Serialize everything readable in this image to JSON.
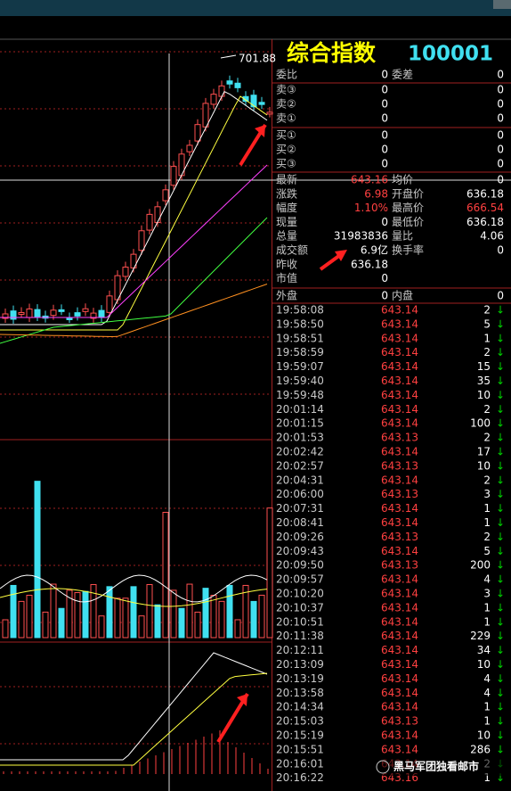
{
  "header": {
    "marker": "701.88",
    "title": "综合指数",
    "code": "100001"
  },
  "order_book": {
    "ratio": {
      "label": "委比",
      "value": "0",
      "label2": "委差",
      "value2": "0"
    },
    "sell": [
      {
        "label": "卖③",
        "price": "0",
        "volume": "0"
      },
      {
        "label": "卖②",
        "price": "0",
        "volume": "0"
      },
      {
        "label": "卖①",
        "price": "0",
        "volume": "0"
      }
    ],
    "buy": [
      {
        "label": "买①",
        "price": "0",
        "volume": "0"
      },
      {
        "label": "买②",
        "price": "0",
        "volume": "0"
      },
      {
        "label": "买③",
        "price": "0",
        "volume": "0"
      }
    ]
  },
  "quotes": [
    {
      "label": "最新",
      "value": "643.16",
      "label2": "均价",
      "value2": "0"
    },
    {
      "label": "涨跌",
      "value": "6.98",
      "label2": "开盘价",
      "value2": "636.18"
    },
    {
      "label": "幅度",
      "value": "1.10%",
      "label2": "最高价",
      "value2": "666.54"
    },
    {
      "label": "现量",
      "value": "0",
      "label2": "最低价",
      "value2": "636.18"
    },
    {
      "label": "总量",
      "value": "31983836",
      "label2": "量比",
      "value2": "4.06"
    },
    {
      "label": "成交额",
      "value": "6.9亿",
      "label2": "换手率",
      "value2": "0"
    },
    {
      "label": "昨收",
      "value": "636.18"
    },
    {
      "label": "市值",
      "value": "0"
    }
  ],
  "outer_inner": {
    "label": "外盘",
    "value": "0",
    "label2": "内盘",
    "value2": "0"
  },
  "ticks": [
    [
      "19:58:08",
      "643.14",
      "2",
      "↓"
    ],
    [
      "19:58:50",
      "643.14",
      "5",
      "↓"
    ],
    [
      "19:58:51",
      "643.14",
      "1",
      "↓"
    ],
    [
      "19:58:59",
      "643.14",
      "2",
      "↓"
    ],
    [
      "19:59:07",
      "643.14",
      "15",
      "↓"
    ],
    [
      "19:59:40",
      "643.14",
      "35",
      "↓"
    ],
    [
      "19:59:48",
      "643.14",
      "10",
      "↓"
    ],
    [
      "20:01:14",
      "643.14",
      "2",
      "↓"
    ],
    [
      "20:01:15",
      "643.14",
      "100",
      "↓"
    ],
    [
      "20:01:53",
      "643.13",
      "2",
      "↓"
    ],
    [
      "20:02:42",
      "643.14",
      "17",
      "↓"
    ],
    [
      "20:02:57",
      "643.13",
      "10",
      "↓"
    ],
    [
      "20:04:31",
      "643.14",
      "2",
      "↓"
    ],
    [
      "20:06:00",
      "643.13",
      "3",
      "↓"
    ],
    [
      "20:07:31",
      "643.14",
      "1",
      "↓"
    ],
    [
      "20:08:41",
      "643.14",
      "1",
      "↓"
    ],
    [
      "20:09:26",
      "643.13",
      "2",
      "↓"
    ],
    [
      "20:09:43",
      "643.14",
      "5",
      "↓"
    ],
    [
      "20:09:50",
      "643.13",
      "200",
      "↓"
    ],
    [
      "20:09:57",
      "643.14",
      "4",
      "↓"
    ],
    [
      "20:10:20",
      "643.14",
      "3",
      "↓"
    ],
    [
      "20:10:37",
      "643.14",
      "1",
      "↓"
    ],
    [
      "20:10:51",
      "643.14",
      "1",
      "↓"
    ],
    [
      "20:11:38",
      "643.14",
      "229",
      "↓"
    ],
    [
      "20:12:11",
      "643.14",
      "34",
      "↓"
    ],
    [
      "20:13:09",
      "643.14",
      "10",
      "↓"
    ],
    [
      "20:13:19",
      "643.14",
      "4",
      "↓"
    ],
    [
      "20:13:58",
      "643.14",
      "4",
      "↓"
    ],
    [
      "20:14:34",
      "643.14",
      "1",
      "↓"
    ],
    [
      "20:15:03",
      "643.13",
      "1",
      "↓"
    ],
    [
      "20:15:19",
      "643.14",
      "10",
      "↓"
    ],
    [
      "20:15:51",
      "643.14",
      "286",
      "↓"
    ],
    [
      "20:16:01",
      "643.14",
      "2",
      "↓"
    ],
    [
      "20:16:22",
      "643.16",
      "1",
      "↓"
    ]
  ],
  "watermark": "黑马军团独看邮市"
}
